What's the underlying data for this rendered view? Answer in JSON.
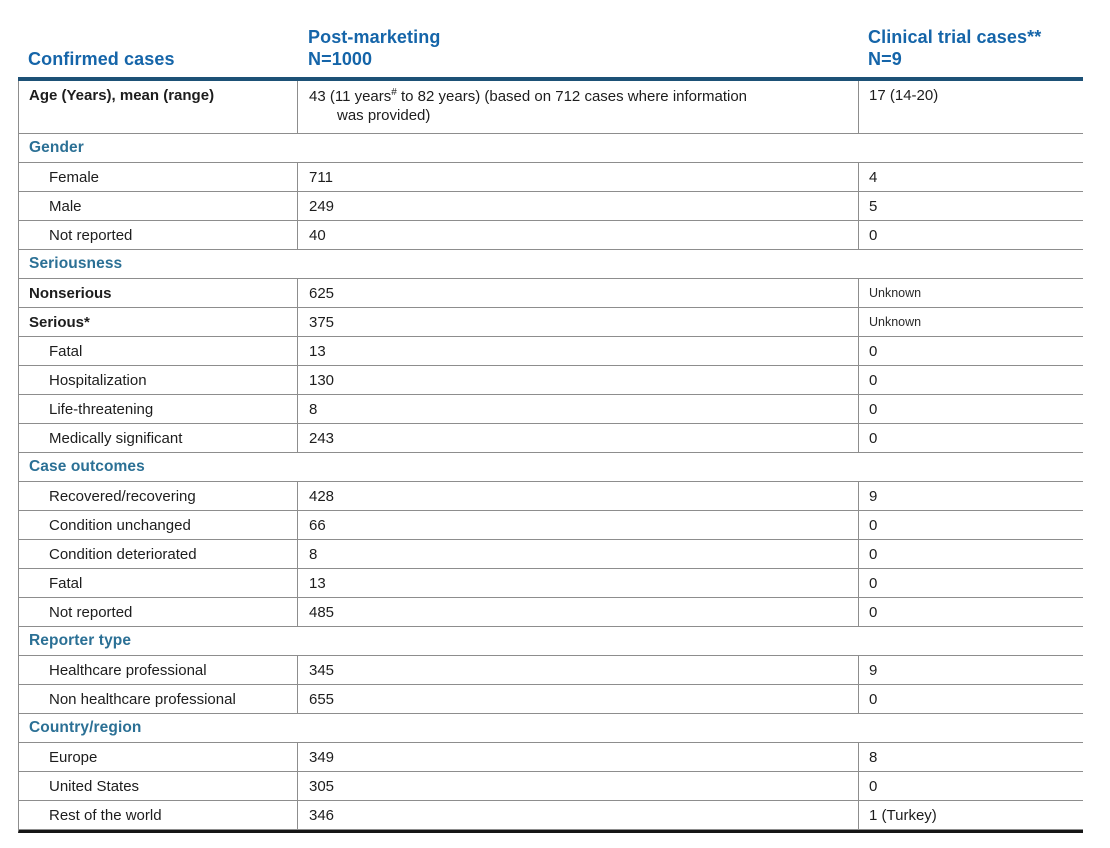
{
  "table": {
    "header": {
      "col1": "Confirmed cases",
      "col2_line1": "Post-marketing",
      "col2_line2": "N=1000",
      "col3_line1": "Clinical trial cases**",
      "col3_line2": "N=9"
    },
    "age_row": {
      "label": "Age (Years), mean (range)",
      "pm_part1": "43 (11 years",
      "pm_sup": "#",
      "pm_part2": " to 82 years) (based on 712 cases where information",
      "pm_line2": "was provided)",
      "ct": "17 (14-20)"
    },
    "sections": [
      {
        "title": "Gender",
        "rows": [
          {
            "label": "Female",
            "pm": "711",
            "ct": "4",
            "level": "sub"
          },
          {
            "label": "Male",
            "pm": "249",
            "ct": "5",
            "level": "sub"
          },
          {
            "label": "Not reported",
            "pm": "40",
            "ct": "0",
            "level": "sub"
          }
        ]
      },
      {
        "title": "Seriousness",
        "rows": [
          {
            "label": "Nonserious",
            "pm": "625",
            "ct": "Unknown",
            "level": "main",
            "ct_style": "small"
          },
          {
            "label": "Serious*",
            "pm": "375",
            "ct": "Unknown",
            "level": "main",
            "ct_style": "small"
          },
          {
            "label": "Fatal",
            "pm": "13",
            "ct": "0",
            "level": "sub"
          },
          {
            "label": "Hospitalization",
            "pm": "130",
            "ct": "0",
            "level": "sub"
          },
          {
            "label": "Life-threatening",
            "pm": "8",
            "ct": "0",
            "level": "sub"
          },
          {
            "label": "Medically significant",
            "pm": "243",
            "ct": "0",
            "level": "sub"
          }
        ]
      },
      {
        "title": "Case outcomes",
        "rows": [
          {
            "label": "Recovered/recovering",
            "pm": "428",
            "ct": "9",
            "level": "sub"
          },
          {
            "label": "Condition unchanged",
            "pm": "66",
            "ct": "0",
            "level": "sub"
          },
          {
            "label": "Condition deteriorated",
            "pm": "8",
            "ct": "0",
            "level": "sub"
          },
          {
            "label": "Fatal",
            "pm": "13",
            "ct": "0",
            "level": "sub"
          },
          {
            "label": "Not reported",
            "pm": "485",
            "ct": "0",
            "level": "sub"
          }
        ]
      },
      {
        "title": "Reporter type",
        "rows": [
          {
            "label": "Healthcare professional",
            "pm": "345",
            "ct": "9",
            "level": "sub"
          },
          {
            "label": "Non healthcare professional",
            "pm": "655",
            "ct": "0",
            "level": "sub"
          }
        ]
      },
      {
        "title": "Country/region",
        "rows": [
          {
            "label": "Europe",
            "pm": "349",
            "ct": "8",
            "level": "sub"
          },
          {
            "label": "United States",
            "pm": "305",
            "ct": "0",
            "level": "sub"
          },
          {
            "label": "Rest of the world",
            "pm": "346",
            "ct": "1 (Turkey)",
            "level": "sub"
          }
        ]
      }
    ],
    "colors": {
      "header_text": "#1565a9",
      "section_text": "#2b7095",
      "header_rule": "#1d5176",
      "grid_line": "#8d8d8d",
      "bottom_rule": "#161616",
      "body_text": "#1d1d1d"
    }
  }
}
